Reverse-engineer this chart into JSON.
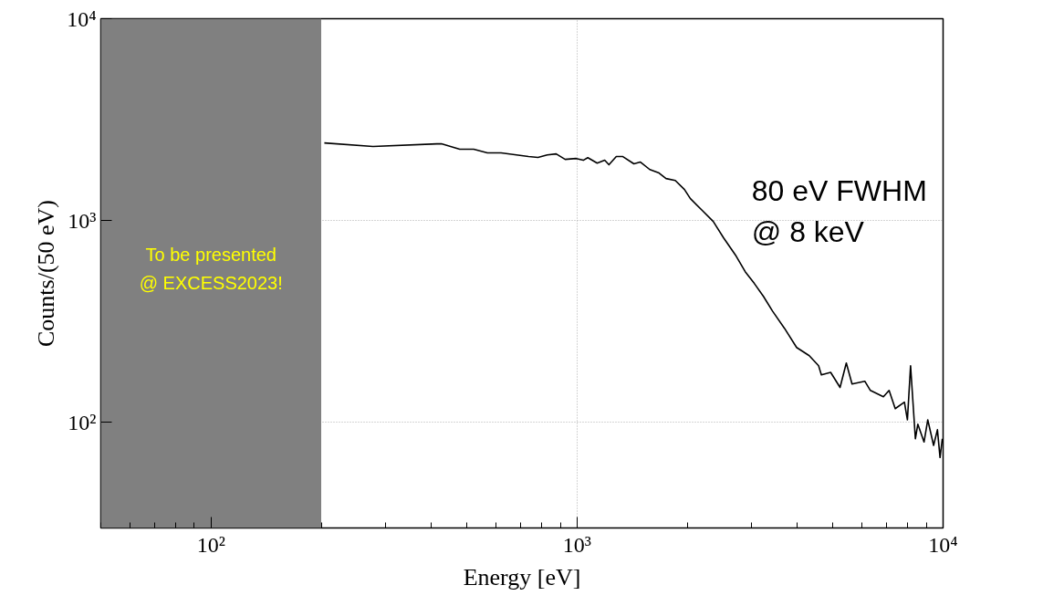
{
  "chart_data": {
    "type": "line",
    "xlabel": "Energy [eV]",
    "ylabel": "Counts/(50 eV)",
    "x": [
      204,
      277,
      414,
      426,
      478,
      522,
      569,
      620,
      737,
      782,
      829,
      877,
      928,
      995,
      1040,
      1070,
      1135,
      1190,
      1222,
      1280,
      1334,
      1430,
      1490,
      1580,
      1675,
      1750,
      1855,
      1965,
      2040,
      2200,
      2355,
      2515,
      2720,
      2880,
      3050,
      3230,
      3420,
      3690,
      3980,
      4310,
      4570,
      4650,
      4930,
      5230,
      5440,
      5640,
      6110,
      6330,
      6870,
      7120,
      7400,
      7840,
      7990,
      8150,
      8400,
      8530,
      8870,
      9080,
      9420,
      9650,
      9810,
      9950
    ],
    "series": [
      {
        "color": "#000000",
        "values": [
          2425,
          2330,
          2400,
          2400,
          2255,
          2255,
          2165,
          2165,
          2075,
          2055,
          2115,
          2140,
          2010,
          2030,
          1990,
          2050,
          1925,
          1990,
          1890,
          2075,
          2075,
          1910,
          1950,
          1790,
          1720,
          1615,
          1580,
          1425,
          1284,
          1121,
          990,
          820,
          667,
          558,
          488,
          421,
          356,
          292,
          235,
          214,
          191,
          172,
          177,
          149,
          197,
          155,
          160,
          144,
          134,
          144,
          117,
          126,
          103,
          191,
          83,
          98,
          80,
          103,
          77,
          92,
          67,
          83
        ]
      }
    ],
    "log": "xy",
    "xlim": [
      50,
      10000
    ],
    "ylim": [
      30,
      10000
    ],
    "xticks": [
      {
        "value": 100,
        "label": "10²"
      },
      {
        "value": 1000,
        "label": "10³"
      },
      {
        "value": 10000,
        "label": "10⁴"
      }
    ],
    "yticks": [
      {
        "value": 100,
        "label": "10²"
      },
      {
        "value": 1000,
        "label": "10³"
      },
      {
        "value": 10000,
        "label": "10⁴"
      }
    ],
    "grid": true,
    "line_style": "solid",
    "marker": "none",
    "bands": [
      {
        "axis": "x",
        "from": 50,
        "to": 200,
        "label": "To be presented\n@ EXCESS2023!",
        "color": "#808080"
      }
    ],
    "annotations": [
      "80 eV FWHM\n@ 8 keV"
    ]
  }
}
